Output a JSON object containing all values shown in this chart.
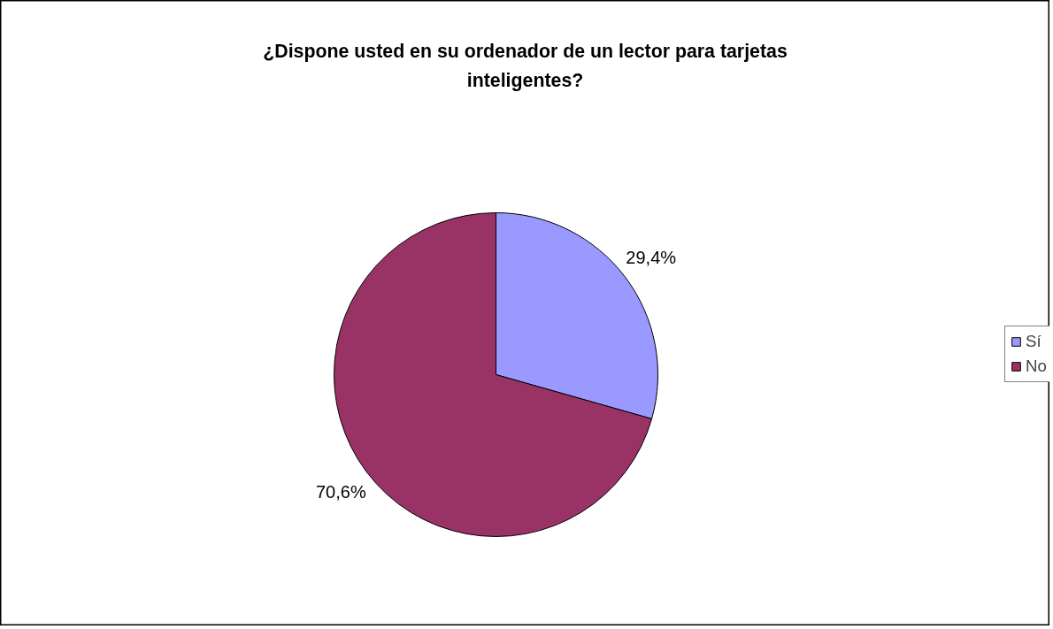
{
  "chart_data": {
    "type": "pie",
    "title": "¿Dispone usted en su ordenador de un lector para tarjetas inteligentes?",
    "categories": [
      "Sí",
      "No"
    ],
    "values": [
      29.4,
      70.6
    ],
    "colors": [
      "#9999ff",
      "#993366"
    ],
    "value_labels": [
      "29,4%",
      "70,6%"
    ],
    "legend": "right"
  }
}
